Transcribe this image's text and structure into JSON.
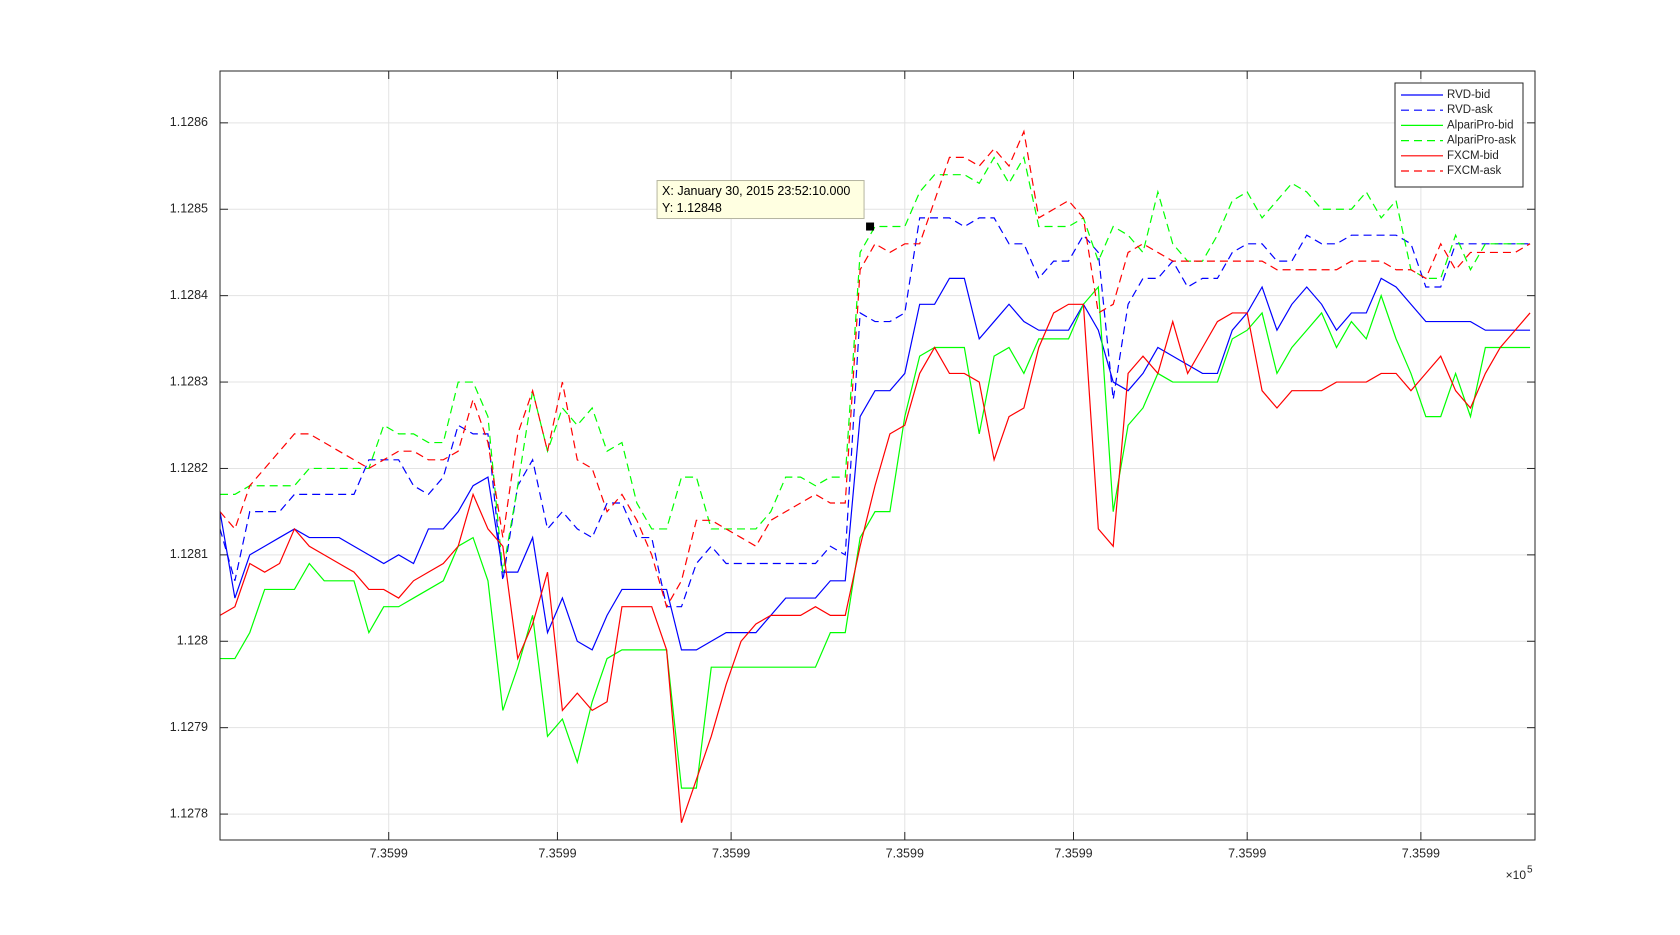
{
  "chart_data": {
    "type": "line",
    "x": [
      735994.99325,
      735994.99328,
      735994.99331,
      735994.99334,
      735994.99337,
      735994.9934,
      735994.99343,
      735994.99346,
      735994.99349,
      735994.99352,
      735994.99355,
      735994.99358,
      735994.99361,
      735994.99364,
      735994.99367,
      735994.9937,
      735994.99373,
      735994.99376,
      735994.99379,
      735994.99382,
      735994.99385,
      735994.99388,
      735994.99391,
      735994.99394,
      735994.99397,
      735994.994,
      735994.99403,
      735994.99406,
      735994.99409,
      735994.99412,
      735994.99415,
      735994.99418,
      735994.99421,
      735994.99424,
      735994.99427,
      735994.9943,
      735994.99433,
      735994.99436,
      735994.99439,
      735994.99442,
      735994.99445,
      735994.99448,
      735994.99451,
      735994.99454,
      735994.99457,
      735994.9946,
      735994.99463,
      735994.99466,
      735994.99469,
      735994.99472,
      735994.99475,
      735994.99478,
      735994.99481,
      735994.99484,
      735994.99487,
      735994.9949,
      735994.99493,
      735994.99496,
      735994.99499,
      735994.99502,
      735994.99505,
      735994.99508,
      735994.99511,
      735994.99514,
      735994.99517,
      735994.9952,
      735994.99523,
      735994.99526,
      735994.99529,
      735994.99532,
      735994.99535,
      735994.99538,
      735994.99541,
      735994.99544,
      735994.99547,
      735994.9955,
      735994.99553,
      735994.99556,
      735994.99559,
      735994.99562,
      735994.99565,
      735994.99568,
      735994.99571,
      735994.99574,
      735994.99577,
      735994.9958,
      735994.99583,
      735994.99586,
      735994.99589
    ],
    "series": [
      {
        "name": "RVD-bid",
        "color": "#0000ff",
        "dash": "solid",
        "values": [
          1.12815,
          1.12805,
          1.1281,
          1.12811,
          1.12812,
          1.12813,
          1.12812,
          1.12812,
          1.12812,
          1.12811,
          1.1281,
          1.12809,
          1.1281,
          1.12809,
          1.12813,
          1.12813,
          1.12815,
          1.12818,
          1.12819,
          1.12808,
          1.12808,
          1.12812,
          1.12801,
          1.12805,
          1.128,
          1.12799,
          1.12803,
          1.12806,
          1.12806,
          1.12806,
          1.12806,
          1.12799,
          1.12799,
          1.128,
          1.12801,
          1.12801,
          1.12801,
          1.12803,
          1.12805,
          1.12805,
          1.12805,
          1.12807,
          1.12807,
          1.12826,
          1.12829,
          1.12829,
          1.12831,
          1.12839,
          1.12839,
          1.12842,
          1.12842,
          1.12835,
          1.12837,
          1.12839,
          1.12837,
          1.12836,
          1.12836,
          1.12836,
          1.12839,
          1.12836,
          1.1283,
          1.12829,
          1.12831,
          1.12834,
          1.12833,
          1.12832,
          1.12831,
          1.12831,
          1.12836,
          1.12838,
          1.12841,
          1.12836,
          1.12839,
          1.12841,
          1.12839,
          1.12836,
          1.12838,
          1.12838,
          1.12842,
          1.12841,
          1.12839,
          1.12837,
          1.12837,
          1.12837,
          1.12837,
          1.12836,
          1.12836,
          1.12836,
          1.12836
        ]
      },
      {
        "name": "RVD-ask",
        "color": "#0000ff",
        "dash": "dashed",
        "values": [
          1.12813,
          1.12807,
          1.12815,
          1.12815,
          1.12815,
          1.12817,
          1.12817,
          1.12817,
          1.12817,
          1.12817,
          1.12821,
          1.12821,
          1.12821,
          1.12818,
          1.12817,
          1.12819,
          1.12825,
          1.12824,
          1.12824,
          1.12807,
          1.12818,
          1.12821,
          1.12813,
          1.12815,
          1.12813,
          1.12812,
          1.12816,
          1.12816,
          1.12812,
          1.12812,
          1.12804,
          1.12804,
          1.12809,
          1.12811,
          1.12809,
          1.12809,
          1.12809,
          1.12809,
          1.12809,
          1.12809,
          1.12809,
          1.12811,
          1.1281,
          1.12838,
          1.12837,
          1.12837,
          1.12838,
          1.12849,
          1.12849,
          1.12849,
          1.12848,
          1.12849,
          1.12849,
          1.12846,
          1.12846,
          1.12842,
          1.12844,
          1.12844,
          1.12847,
          1.12845,
          1.12828,
          1.12839,
          1.12842,
          1.12842,
          1.12844,
          1.12841,
          1.12842,
          1.12842,
          1.12845,
          1.12846,
          1.12846,
          1.12844,
          1.12844,
          1.12847,
          1.12846,
          1.12846,
          1.12847,
          1.12847,
          1.12847,
          1.12847,
          1.12846,
          1.12841,
          1.12841,
          1.12846,
          1.12846,
          1.12846,
          1.12846,
          1.12846,
          1.12846
        ]
      },
      {
        "name": "AlpariPro-bid",
        "color": "#00ff00",
        "dash": "solid",
        "values": [
          1.12798,
          1.12798,
          1.12801,
          1.12806,
          1.12806,
          1.12806,
          1.12809,
          1.12807,
          1.12807,
          1.12807,
          1.12801,
          1.12804,
          1.12804,
          1.12805,
          1.12806,
          1.12807,
          1.12811,
          1.12812,
          1.12807,
          1.12792,
          1.12797,
          1.12803,
          1.12789,
          1.12791,
          1.12786,
          1.12793,
          1.12798,
          1.12799,
          1.12799,
          1.12799,
          1.12799,
          1.12783,
          1.12783,
          1.12797,
          1.12797,
          1.12797,
          1.12797,
          1.12797,
          1.12797,
          1.12797,
          1.12797,
          1.12801,
          1.12801,
          1.12812,
          1.12815,
          1.12815,
          1.12826,
          1.12833,
          1.12834,
          1.12834,
          1.12834,
          1.12824,
          1.12833,
          1.12834,
          1.12831,
          1.12835,
          1.12835,
          1.12835,
          1.12839,
          1.12841,
          1.12815,
          1.12825,
          1.12827,
          1.12831,
          1.1283,
          1.1283,
          1.1283,
          1.1283,
          1.12835,
          1.12836,
          1.12838,
          1.12831,
          1.12834,
          1.12836,
          1.12838,
          1.12834,
          1.12837,
          1.12835,
          1.1284,
          1.12835,
          1.12831,
          1.12826,
          1.12826,
          1.12831,
          1.12826,
          1.12834,
          1.12834,
          1.12834,
          1.12834
        ]
      },
      {
        "name": "AlpariPro-ask",
        "color": "#00ff00",
        "dash": "dashed",
        "values": [
          1.12817,
          1.12817,
          1.12818,
          1.12818,
          1.12818,
          1.12818,
          1.1282,
          1.1282,
          1.1282,
          1.1282,
          1.1282,
          1.12825,
          1.12824,
          1.12824,
          1.12823,
          1.12823,
          1.1283,
          1.1283,
          1.12826,
          1.12808,
          1.12818,
          1.12829,
          1.12822,
          1.12827,
          1.12825,
          1.12827,
          1.12822,
          1.12823,
          1.12816,
          1.12813,
          1.12813,
          1.12819,
          1.12819,
          1.12813,
          1.12813,
          1.12813,
          1.12813,
          1.12815,
          1.12819,
          1.12819,
          1.12818,
          1.12819,
          1.12819,
          1.12845,
          1.12848,
          1.12848,
          1.12848,
          1.12852,
          1.12854,
          1.12854,
          1.12854,
          1.12853,
          1.12856,
          1.12853,
          1.12856,
          1.12848,
          1.12848,
          1.12848,
          1.12849,
          1.12844,
          1.12848,
          1.12847,
          1.12845,
          1.12852,
          1.12846,
          1.12844,
          1.12844,
          1.12847,
          1.12851,
          1.12852,
          1.12849,
          1.12851,
          1.12853,
          1.12852,
          1.1285,
          1.1285,
          1.1285,
          1.12852,
          1.12849,
          1.12851,
          1.12843,
          1.12842,
          1.12842,
          1.12847,
          1.12843,
          1.12846,
          1.12846,
          1.12846,
          1.12846
        ]
      },
      {
        "name": "FXCM-bid",
        "color": "#ff0000",
        "dash": "solid",
        "values": [
          1.12803,
          1.12804,
          1.12809,
          1.12808,
          1.12809,
          1.12813,
          1.12811,
          1.1281,
          1.12809,
          1.12808,
          1.12806,
          1.12806,
          1.12805,
          1.12807,
          1.12808,
          1.12809,
          1.12811,
          1.12817,
          1.12813,
          1.12811,
          1.12798,
          1.12802,
          1.12808,
          1.12792,
          1.12794,
          1.12792,
          1.12793,
          1.12804,
          1.12804,
          1.12804,
          1.12799,
          1.12779,
          1.12784,
          1.12789,
          1.12795,
          1.128,
          1.12802,
          1.12803,
          1.12803,
          1.12803,
          1.12804,
          1.12803,
          1.12803,
          1.12811,
          1.12818,
          1.12824,
          1.12825,
          1.12831,
          1.12834,
          1.12831,
          1.12831,
          1.1283,
          1.12821,
          1.12826,
          1.12827,
          1.12834,
          1.12838,
          1.12839,
          1.12839,
          1.12813,
          1.12811,
          1.12831,
          1.12833,
          1.12831,
          1.12837,
          1.12831,
          1.12834,
          1.12837,
          1.12838,
          1.12838,
          1.12829,
          1.12827,
          1.12829,
          1.12829,
          1.12829,
          1.1283,
          1.1283,
          1.1283,
          1.12831,
          1.12831,
          1.12829,
          1.12831,
          1.12833,
          1.12829,
          1.12827,
          1.12831,
          1.12834,
          1.12836,
          1.12838
        ]
      },
      {
        "name": "FXCM-ask",
        "color": "#ff0000",
        "dash": "dashed",
        "values": [
          1.12815,
          1.12813,
          1.12818,
          1.1282,
          1.12822,
          1.12824,
          1.12824,
          1.12823,
          1.12822,
          1.12821,
          1.1282,
          1.12821,
          1.12822,
          1.12822,
          1.12821,
          1.12821,
          1.12822,
          1.12828,
          1.12823,
          1.12812,
          1.12824,
          1.12829,
          1.12822,
          1.1283,
          1.12821,
          1.1282,
          1.12815,
          1.12817,
          1.12814,
          1.1281,
          1.12804,
          1.12807,
          1.12814,
          1.12814,
          1.12813,
          1.12812,
          1.12811,
          1.12814,
          1.12815,
          1.12816,
          1.12817,
          1.12816,
          1.12816,
          1.12843,
          1.12846,
          1.12845,
          1.12846,
          1.12846,
          1.12851,
          1.12856,
          1.12856,
          1.12855,
          1.12857,
          1.12855,
          1.12859,
          1.12849,
          1.1285,
          1.12851,
          1.12849,
          1.12838,
          1.12839,
          1.12845,
          1.12846,
          1.12845,
          1.12844,
          1.12844,
          1.12844,
          1.12844,
          1.12844,
          1.12844,
          1.12844,
          1.12843,
          1.12843,
          1.12843,
          1.12843,
          1.12843,
          1.12844,
          1.12844,
          1.12844,
          1.12843,
          1.12843,
          1.12842,
          1.12846,
          1.12843,
          1.12845,
          1.12845,
          1.12845,
          1.12845,
          1.12846
        ]
      }
    ],
    "xlim": [
      735994.99325,
      735994.9959
    ],
    "xticks": [
      {
        "value": 735994.99359,
        "label": "7.3599"
      },
      {
        "value": 735994.99393,
        "label": "7.3599"
      },
      {
        "value": 735994.99428,
        "label": "7.3599"
      },
      {
        "value": 735994.99463,
        "label": "7.3599"
      },
      {
        "value": 735994.99497,
        "label": "7.3599"
      },
      {
        "value": 735994.99532,
        "label": "7.3599"
      },
      {
        "value": 735994.99567,
        "label": "7.3599"
      }
    ],
    "x_multiplier": "×10",
    "x_exponent": "5",
    "ylim": [
      1.12777,
      1.12866
    ],
    "yticks": [
      1.1278,
      1.1279,
      1.128,
      1.1281,
      1.1282,
      1.1283,
      1.1284,
      1.1285,
      1.1286
    ],
    "grid": true,
    "legend": "northeast",
    "datatip": {
      "x": 735994.99456,
      "y": 1.12848,
      "lines": [
        "X: January 30, 2015 23:52:10.000",
        "Y: 1.12848"
      ]
    }
  }
}
